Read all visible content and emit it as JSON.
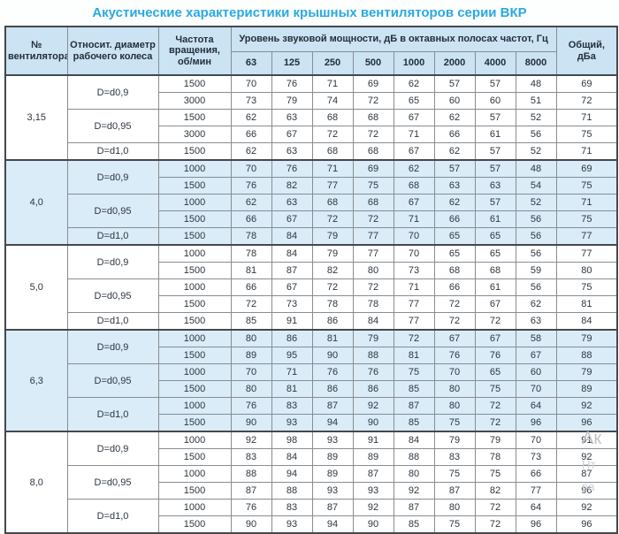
{
  "title": "Акустические характеристики крышных вентиляторов серии ВКР",
  "table": {
    "col_headers": {
      "fan": "№ вентилятора",
      "diameter": "Относит. диаметр рабочего колеса",
      "speed": "Частота вращения, об/мин",
      "spl_group": "Уровень звуковой мощности, дБ в октавных полосах частот, Гц",
      "freqs": [
        "63",
        "125",
        "250",
        "500",
        "1000",
        "2000",
        "4000",
        "8000"
      ],
      "total": "Общий, дБа"
    },
    "groups": [
      {
        "fan": "3,15",
        "shaded": false,
        "subgroups": [
          {
            "diameter": "D=d0,9",
            "rows": [
              {
                "speed": "1500",
                "values": [
                  70,
                  76,
                  71,
                  69,
                  62,
                  57,
                  57,
                  48
                ],
                "total": 69
              },
              {
                "speed": "3000",
                "values": [
                  73,
                  79,
                  74,
                  72,
                  65,
                  60,
                  60,
                  51
                ],
                "total": 72
              }
            ]
          },
          {
            "diameter": "D=d0,95",
            "rows": [
              {
                "speed": "1500",
                "values": [
                  62,
                  63,
                  68,
                  68,
                  67,
                  62,
                  57,
                  52
                ],
                "total": 71
              },
              {
                "speed": "3000",
                "values": [
                  66,
                  67,
                  72,
                  72,
                  71,
                  66,
                  61,
                  56
                ],
                "total": 75
              }
            ]
          },
          {
            "diameter": "D=d1,0",
            "rows": [
              {
                "speed": "1500",
                "values": [
                  62,
                  63,
                  68,
                  68,
                  67,
                  62,
                  57,
                  52
                ],
                "total": 71
              }
            ]
          }
        ]
      },
      {
        "fan": "4,0",
        "shaded": true,
        "subgroups": [
          {
            "diameter": "D=d0,9",
            "rows": [
              {
                "speed": "1000",
                "values": [
                  70,
                  76,
                  71,
                  69,
                  62,
                  57,
                  57,
                  48
                ],
                "total": 69
              },
              {
                "speed": "1500",
                "values": [
                  76,
                  82,
                  77,
                  75,
                  68,
                  63,
                  63,
                  54
                ],
                "total": 75
              }
            ]
          },
          {
            "diameter": "D=d0,95",
            "rows": [
              {
                "speed": "1000",
                "values": [
                  62,
                  63,
                  68,
                  68,
                  67,
                  62,
                  57,
                  52
                ],
                "total": 71
              },
              {
                "speed": "1500",
                "values": [
                  66,
                  67,
                  72,
                  72,
                  71,
                  66,
                  61,
                  56
                ],
                "total": 75
              }
            ]
          },
          {
            "diameter": "D=d1,0",
            "rows": [
              {
                "speed": "1500",
                "values": [
                  78,
                  84,
                  79,
                  77,
                  70,
                  65,
                  65,
                  56
                ],
                "total": 77
              }
            ]
          }
        ]
      },
      {
        "fan": "5,0",
        "shaded": false,
        "subgroups": [
          {
            "diameter": "D=d0,9",
            "rows": [
              {
                "speed": "1000",
                "values": [
                  78,
                  84,
                  79,
                  77,
                  70,
                  65,
                  65,
                  56
                ],
                "total": 77
              },
              {
                "speed": "1500",
                "values": [
                  81,
                  87,
                  82,
                  80,
                  73,
                  68,
                  68,
                  59
                ],
                "total": 80
              }
            ]
          },
          {
            "diameter": "D=d0,95",
            "rows": [
              {
                "speed": "1000",
                "values": [
                  66,
                  67,
                  72,
                  72,
                  71,
                  66,
                  61,
                  56
                ],
                "total": 75
              },
              {
                "speed": "1500",
                "values": [
                  72,
                  73,
                  78,
                  78,
                  77,
                  72,
                  67,
                  62
                ],
                "total": 81
              }
            ]
          },
          {
            "diameter": "D=d1,0",
            "rows": [
              {
                "speed": "1500",
                "values": [
                  85,
                  91,
                  86,
                  84,
                  77,
                  72,
                  72,
                  63
                ],
                "total": 84
              }
            ]
          }
        ]
      },
      {
        "fan": "6,3",
        "shaded": true,
        "subgroups": [
          {
            "diameter": "D=d0,9",
            "rows": [
              {
                "speed": "1000",
                "values": [
                  80,
                  86,
                  81,
                  79,
                  72,
                  67,
                  67,
                  58
                ],
                "total": 79
              },
              {
                "speed": "1500",
                "values": [
                  89,
                  95,
                  90,
                  88,
                  81,
                  76,
                  76,
                  67
                ],
                "total": 88
              }
            ]
          },
          {
            "diameter": "D=d0,95",
            "rows": [
              {
                "speed": "1000",
                "values": [
                  70,
                  71,
                  76,
                  76,
                  75,
                  70,
                  65,
                  60
                ],
                "total": 79
              },
              {
                "speed": "1500",
                "values": [
                  80,
                  81,
                  86,
                  86,
                  85,
                  80,
                  75,
                  70
                ],
                "total": 89
              }
            ]
          },
          {
            "diameter": "D=d1,0",
            "rows": [
              {
                "speed": "1000",
                "values": [
                  76,
                  83,
                  87,
                  92,
                  87,
                  80,
                  72,
                  64
                ],
                "total": 92
              },
              {
                "speed": "1500",
                "values": [
                  90,
                  93,
                  94,
                  90,
                  85,
                  75,
                  72,
                  96
                ],
                "total": 96
              }
            ]
          }
        ]
      },
      {
        "fan": "8,0",
        "shaded": false,
        "subgroups": [
          {
            "diameter": "D=d0,9",
            "rows": [
              {
                "speed": "1000",
                "values": [
                  92,
                  98,
                  93,
                  91,
                  84,
                  79,
                  79,
                  70
                ],
                "total": 91
              },
              {
                "speed": "1500",
                "values": [
                  83,
                  84,
                  89,
                  89,
                  88,
                  83,
                  78,
                  73
                ],
                "total": 92
              }
            ]
          },
          {
            "diameter": "D=d0,95",
            "rows": [
              {
                "speed": "1000",
                "values": [
                  88,
                  94,
                  89,
                  87,
                  80,
                  75,
                  75,
                  66
                ],
                "total": 87
              },
              {
                "speed": "1500",
                "values": [
                  87,
                  88,
                  93,
                  93,
                  92,
                  87,
                  82,
                  77
                ],
                "total": 96
              }
            ]
          },
          {
            "diameter": "D=d1,0",
            "rows": [
              {
                "speed": "1000",
                "values": [
                  76,
                  83,
                  87,
                  92,
                  87,
                  80,
                  72,
                  64
                ],
                "total": 92
              },
              {
                "speed": "1500",
                "values": [
                  90,
                  93,
                  94,
                  90,
                  85,
                  75,
                  72,
                  96
                ],
                "total": 96
              }
            ]
          }
        ]
      }
    ]
  },
  "watermark": {
    "fragments": [
      "Ак",
      "Нт",
      "ра"
    ]
  }
}
